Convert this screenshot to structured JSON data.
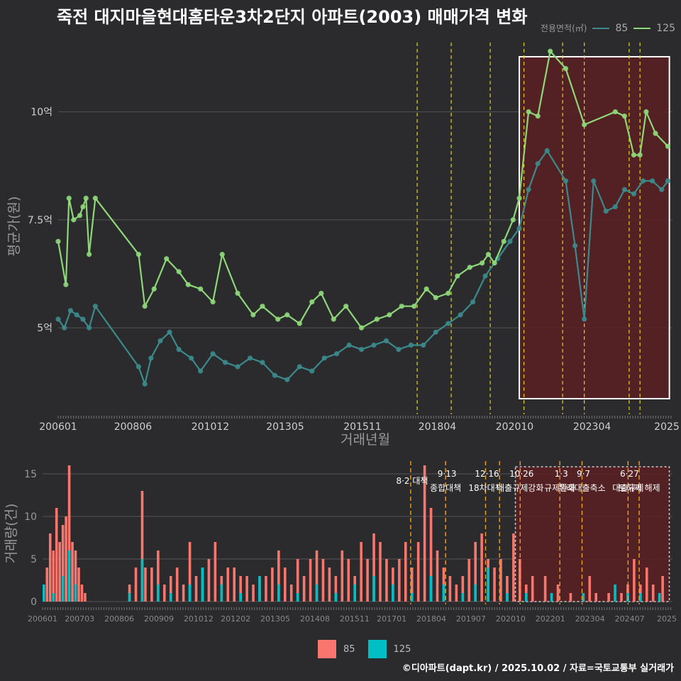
{
  "title": "죽전 대지마을현대홈타운3차2단지 아파트(2003) 매매가격 변화",
  "credit": "©디아파트(dapt.kr) / 2025.10.02 / 자료=국토교통부 실거래가",
  "colors": {
    "bg": "#2b2b2d",
    "s85_line": "#3b8a8c",
    "s125_line": "#8ed87a",
    "bar85": "#f8766d",
    "bar125": "#00bfc4",
    "event": "#e3d21c",
    "highlight": "#5a1e22"
  },
  "legend_top": {
    "title": "전용면적(㎡)",
    "items": [
      {
        "name": "85",
        "color": "#3b8a8c"
      },
      {
        "name": "125",
        "color": "#8ed87a"
      }
    ]
  },
  "legend_bottom": {
    "items": [
      {
        "name": "85",
        "color": "#f8766d"
      },
      {
        "name": "125",
        "color": "#00bfc4"
      }
    ]
  },
  "chart_data": [
    {
      "type": "line",
      "title": "평균가 추이",
      "xlabel": "거래년월",
      "ylabel": "평균가(원)",
      "x_ticks": [
        "200601",
        "200806",
        "201012",
        "201305",
        "201511",
        "201804",
        "202010",
        "202304",
        "2025"
      ],
      "y_ticks": [
        {
          "v": 5,
          "label": "5억"
        },
        {
          "v": 7.5,
          "label": "7.5억"
        },
        {
          "v": 10,
          "label": "10억"
        }
      ],
      "ylim": [
        3.0,
        11.7
      ],
      "xlim": [
        2006.0,
        2025.85
      ],
      "highlight_range": [
        2020.9,
        2025.75
      ],
      "event_lines": [
        2017.6,
        2018.7,
        2019.96,
        2021.05,
        2022.3,
        2023.0,
        2024.45,
        2024.8
      ],
      "series": [
        {
          "name": "125",
          "color": "#8ed87a",
          "x": [
            2006.0,
            2006.25,
            2006.35,
            2006.5,
            2006.7,
            2006.8,
            2006.9,
            2007.0,
            2007.2,
            2008.6,
            2008.8,
            2009.1,
            2009.5,
            2009.9,
            2010.2,
            2010.6,
            2011.0,
            2011.3,
            2011.8,
            2012.3,
            2012.6,
            2013.1,
            2013.4,
            2013.8,
            2014.2,
            2014.5,
            2014.9,
            2015.3,
            2015.8,
            2016.3,
            2016.7,
            2017.1,
            2017.5,
            2017.9,
            2018.2,
            2018.6,
            2018.9,
            2019.3,
            2019.7,
            2019.9,
            2020.1,
            2020.4,
            2020.7,
            2020.9,
            2021.2,
            2021.5,
            2021.9,
            2022.4,
            2023.0,
            2024.0,
            2024.3,
            2024.6,
            2024.8,
            2025.0,
            2025.3,
            2025.7
          ],
          "values": [
            7.0,
            6.0,
            8.0,
            7.5,
            7.6,
            7.8,
            8.0,
            6.7,
            8.0,
            6.7,
            5.5,
            5.9,
            6.6,
            6.3,
            6.0,
            5.9,
            5.6,
            6.7,
            5.8,
            5.3,
            5.5,
            5.2,
            5.3,
            5.1,
            5.6,
            5.8,
            5.2,
            5.5,
            5.0,
            5.2,
            5.3,
            5.5,
            5.5,
            5.9,
            5.7,
            5.8,
            6.2,
            6.4,
            6.5,
            6.7,
            6.5,
            7.0,
            7.5,
            8.0,
            10.0,
            9.9,
            11.4,
            11.0,
            9.7,
            10.0,
            9.9,
            9.0,
            9.0,
            10.0,
            9.5,
            9.2
          ]
        },
        {
          "name": "85",
          "color": "#3b8a8c",
          "x": [
            2006.0,
            2006.2,
            2006.4,
            2006.6,
            2006.8,
            2007.0,
            2007.2,
            2008.6,
            2008.8,
            2009.0,
            2009.3,
            2009.6,
            2009.9,
            2010.3,
            2010.6,
            2011.0,
            2011.4,
            2011.8,
            2012.2,
            2012.6,
            2013.0,
            2013.4,
            2013.8,
            2014.2,
            2014.6,
            2015.0,
            2015.4,
            2015.8,
            2016.2,
            2016.6,
            2017.0,
            2017.4,
            2017.8,
            2018.2,
            2018.6,
            2019.0,
            2019.4,
            2019.8,
            2020.2,
            2020.6,
            2020.9,
            2021.2,
            2021.5,
            2021.8,
            2022.4,
            2022.7,
            2023.0,
            2023.3,
            2023.7,
            2024.0,
            2024.3,
            2024.6,
            2024.9,
            2025.2,
            2025.5,
            2025.7
          ],
          "values": [
            5.2,
            5.0,
            5.4,
            5.3,
            5.2,
            5.0,
            5.5,
            4.1,
            3.7,
            4.3,
            4.7,
            4.9,
            4.5,
            4.3,
            4.0,
            4.4,
            4.2,
            4.1,
            4.3,
            4.2,
            3.9,
            3.8,
            4.1,
            4.0,
            4.3,
            4.4,
            4.6,
            4.5,
            4.6,
            4.7,
            4.5,
            4.6,
            4.6,
            4.9,
            5.1,
            5.3,
            5.6,
            6.2,
            6.6,
            7.0,
            7.3,
            8.2,
            8.8,
            9.1,
            8.4,
            6.9,
            5.2,
            8.4,
            7.7,
            7.8,
            8.2,
            8.1,
            8.4,
            8.4,
            8.2,
            8.4
          ]
        }
      ]
    },
    {
      "type": "bar",
      "title": "거래량",
      "xlabel": "",
      "ylabel": "거래량(건)",
      "x_ticks": [
        "200601",
        "200703",
        "200806",
        "200909",
        "201012",
        "201202",
        "201305",
        "201408",
        "201511",
        "201701",
        "201804",
        "201907",
        "202010",
        "202201",
        "202304",
        "202407",
        "2025"
      ],
      "y_ticks": [
        0,
        5,
        10,
        15
      ],
      "ylim": [
        0,
        16
      ],
      "highlight_range": [
        2020.9,
        2025.75
      ],
      "events": [
        {
          "x": 2017.6,
          "label": "8·2 대책",
          "line1": ""
        },
        {
          "x": 2018.7,
          "label": "9·13",
          "line1": "종합대책"
        },
        {
          "x": 2019.96,
          "label": "12·16",
          "line1": "18차대책"
        },
        {
          "x": 2020.4,
          "label": "",
          "line1": ""
        },
        {
          "x": 2021.05,
          "label": "10·26",
          "line1": "대출규제강화"
        },
        {
          "x": 2022.3,
          "label": "1·3",
          "line1": "규제완화"
        },
        {
          "x": 2023.0,
          "label": "9·7",
          "line1": "특례대출축소"
        },
        {
          "x": 2024.45,
          "label": "6·27",
          "line1": "대출규제"
        },
        {
          "x": 2024.8,
          "label": "",
          "line1": "토허제 해제"
        }
      ],
      "series": [
        {
          "name": "85",
          "color": "#f8766d",
          "x": [
            2006.0,
            2006.1,
            2006.2,
            2006.3,
            2006.4,
            2006.5,
            2006.6,
            2006.7,
            2006.8,
            2006.9,
            2007.0,
            2007.1,
            2007.2,
            2007.3,
            2007.4,
            2007.5,
            2007.6,
            2008.7,
            2008.9,
            2009.1,
            2009.2,
            2009.4,
            2009.6,
            2009.8,
            2010.0,
            2010.2,
            2010.4,
            2010.6,
            2010.8,
            2011.0,
            2011.2,
            2011.4,
            2011.6,
            2011.8,
            2012.0,
            2012.2,
            2012.4,
            2012.6,
            2012.8,
            2013.0,
            2013.2,
            2013.4,
            2013.6,
            2013.8,
            2014.0,
            2014.2,
            2014.4,
            2014.6,
            2014.8,
            2015.0,
            2015.2,
            2015.4,
            2015.6,
            2015.8,
            2016.0,
            2016.2,
            2016.4,
            2016.6,
            2016.8,
            2017.0,
            2017.2,
            2017.4,
            2017.6,
            2017.8,
            2018.0,
            2018.2,
            2018.4,
            2018.6,
            2018.8,
            2019.0,
            2019.2,
            2019.4,
            2019.6,
            2019.8,
            2020.0,
            2020.2,
            2020.4,
            2020.6,
            2020.8,
            2021.0,
            2021.2,
            2021.4,
            2021.8,
            2022.2,
            2022.6,
            2023.0,
            2023.2,
            2023.4,
            2023.8,
            2024.2,
            2024.4,
            2024.6,
            2024.8,
            2025.0,
            2025.2,
            2025.5
          ],
          "values": [
            2,
            4,
            8,
            6,
            11,
            7,
            9,
            10,
            16,
            7,
            6,
            4,
            2,
            1,
            0,
            0,
            0,
            2,
            4,
            13,
            4,
            4,
            6,
            2,
            3,
            4,
            2,
            7,
            3,
            4,
            5,
            7,
            3,
            4,
            4,
            3,
            3,
            2,
            3,
            3,
            4,
            6,
            4,
            2,
            5,
            3,
            5,
            6,
            5,
            4,
            3,
            6,
            5,
            3,
            7,
            5,
            8,
            7,
            5,
            4,
            5,
            7,
            4,
            7,
            16,
            11,
            6,
            4,
            3,
            2,
            3,
            5,
            7,
            8,
            5,
            4,
            5,
            3,
            8,
            5,
            2,
            3,
            3,
            2,
            1,
            1,
            3,
            1,
            1,
            1,
            2,
            5,
            2,
            4,
            2,
            3
          ]
        },
        {
          "name": "125",
          "color": "#00bfc4",
          "x": [
            2006.0,
            2006.3,
            2006.6,
            2006.8,
            2007.0,
            2008.7,
            2009.1,
            2009.6,
            2010.0,
            2010.6,
            2011.0,
            2011.6,
            2012.2,
            2012.8,
            2013.4,
            2014.0,
            2014.6,
            2015.2,
            2015.8,
            2016.4,
            2017.0,
            2017.6,
            2018.2,
            2018.6,
            2019.2,
            2019.6,
            2020.0,
            2020.6,
            2021.2,
            2022.0,
            2023.0,
            2024.0,
            2024.4,
            2024.8,
            2025.4
          ],
          "values": [
            2,
            1,
            3,
            6,
            2,
            1,
            5,
            2,
            1,
            2,
            4,
            2,
            1,
            3,
            2,
            1,
            2,
            1,
            2,
            3,
            2,
            1,
            3,
            2,
            1,
            2,
            4,
            1,
            1,
            1,
            1,
            2,
            1,
            1,
            1
          ]
        }
      ]
    }
  ]
}
